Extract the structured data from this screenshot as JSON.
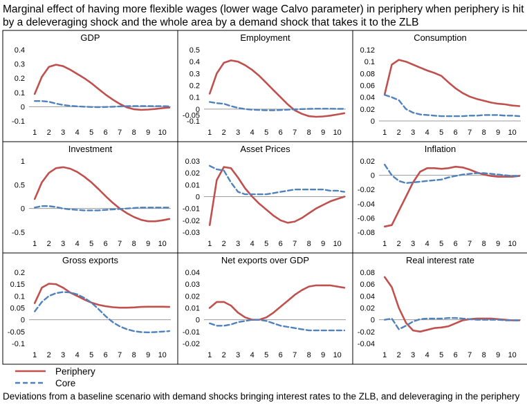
{
  "title": "Marginal effect of having more flexible wages (lower wage Calvo parameter) in periphery when periphery is hit by a deleveraging shock and the whole area by a demand shock that takes it to the ZLB",
  "footnote": "Deviations from a baseline scenario with demand shocks bringing interest rates to the ZLB, and deleveraging in the periphery",
  "colors": {
    "periphery": "#c0504d",
    "core": "#4f81bd",
    "panel_border": "#000000",
    "zero_line": "#9a9a9a"
  },
  "legend": [
    {
      "name": "Periphery",
      "style": "solid",
      "color": "#c0504d"
    },
    {
      "name": "Core",
      "style": "dashed",
      "color": "#4f81bd"
    }
  ],
  "chart_data": [
    {
      "type": "line",
      "title": "GDP",
      "ylim": [
        -0.1,
        0.4
      ],
      "yticks": [
        "0.4",
        "0.3",
        "0.2",
        "0.1",
        "0",
        "-0.1"
      ],
      "xticks": [
        "1",
        "2",
        "3",
        "4",
        "5",
        "6",
        "7",
        "8",
        "9",
        "10"
      ],
      "x": [
        1,
        1.5,
        2,
        2.5,
        3,
        3.5,
        4,
        4.5,
        5,
        5.5,
        6,
        6.5,
        7,
        7.5,
        8,
        8.5,
        9,
        9.5,
        10,
        10.5
      ],
      "series": [
        {
          "name": "Periphery",
          "values": [
            0.09,
            0.21,
            0.28,
            0.295,
            0.285,
            0.26,
            0.23,
            0.2,
            0.165,
            0.125,
            0.085,
            0.05,
            0.02,
            -0.005,
            -0.018,
            -0.022,
            -0.02,
            -0.016,
            -0.01,
            -0.006
          ]
        },
        {
          "name": "Core",
          "values": [
            0.04,
            0.04,
            0.035,
            0.022,
            0.012,
            0.006,
            0.003,
            0.0,
            -0.002,
            -0.003,
            -0.002,
            0.0,
            0.002,
            0.004,
            0.005,
            0.005,
            0.005,
            0.004,
            0.004,
            0.003
          ]
        }
      ]
    },
    {
      "type": "line",
      "title": "Employment",
      "ylim": [
        -0.1,
        0.5
      ],
      "yticks": [
        "0.5",
        "0.4",
        "0.3",
        "0.2",
        "0.1",
        "0",
        "-0.05",
        "-0.1"
      ],
      "yticks_values": [
        0.5,
        0.4,
        0.3,
        0.2,
        0.1,
        0,
        -0.05,
        -0.1
      ],
      "xticks": [
        "1",
        "2",
        "3",
        "4",
        "5",
        "6",
        "7",
        "8",
        "9",
        "10"
      ],
      "x": [
        1,
        1.5,
        2,
        2.5,
        3,
        3.5,
        4,
        4.5,
        5,
        5.5,
        6,
        6.5,
        7,
        7.5,
        8,
        8.5,
        9,
        9.5,
        10,
        10.5
      ],
      "series": [
        {
          "name": "Periphery",
          "values": [
            0.13,
            0.3,
            0.39,
            0.41,
            0.4,
            0.37,
            0.33,
            0.28,
            0.22,
            0.16,
            0.1,
            0.04,
            -0.01,
            -0.04,
            -0.06,
            -0.065,
            -0.062,
            -0.055,
            -0.045,
            -0.035
          ]
        },
        {
          "name": "Core",
          "values": [
            0.06,
            0.05,
            0.045,
            0.025,
            0.01,
            0.0,
            -0.005,
            -0.008,
            -0.01,
            -0.01,
            -0.008,
            -0.005,
            -0.002,
            0.0,
            0.002,
            0.003,
            0.003,
            0.003,
            0.002,
            0.002
          ]
        }
      ]
    },
    {
      "type": "line",
      "title": "Consumption",
      "ylim": [
        0,
        0.12
      ],
      "yticks": [
        "0.12",
        "0.1",
        "0.08",
        "0.06",
        "0.04",
        "0.02",
        "0"
      ],
      "xticks": [
        "1",
        "2",
        "3",
        "4",
        "5",
        "6",
        "7",
        "8",
        "9",
        "10"
      ],
      "x": [
        1,
        1.5,
        2,
        2.5,
        3,
        3.5,
        4,
        4.5,
        5,
        5.5,
        6,
        6.5,
        7,
        7.5,
        8,
        8.5,
        9,
        9.5,
        10,
        10.5
      ],
      "series": [
        {
          "name": "Periphery",
          "values": [
            0.045,
            0.095,
            0.103,
            0.1,
            0.095,
            0.09,
            0.085,
            0.081,
            0.076,
            0.065,
            0.055,
            0.047,
            0.041,
            0.037,
            0.034,
            0.031,
            0.029,
            0.028,
            0.026,
            0.025
          ]
        },
        {
          "name": "Core",
          "values": [
            0.044,
            0.04,
            0.035,
            0.02,
            0.014,
            0.011,
            0.01,
            0.009,
            0.008,
            0.008,
            0.008,
            0.008,
            0.009,
            0.009,
            0.01,
            0.01,
            0.01,
            0.009,
            0.009,
            0.008
          ]
        }
      ]
    },
    {
      "type": "line",
      "title": "Investment",
      "ylim": [
        -0.5,
        1
      ],
      "yticks": [
        "1",
        "0.5",
        "0",
        "-0.5"
      ],
      "xticks": [
        "1",
        "2",
        "3",
        "4",
        "5",
        "6",
        "7",
        "8",
        "9",
        "10"
      ],
      "x": [
        1,
        1.5,
        2,
        2.5,
        3,
        3.5,
        4,
        4.5,
        5,
        5.5,
        6,
        6.5,
        7,
        7.5,
        8,
        8.5,
        9,
        9.5,
        10,
        10.5
      ],
      "series": [
        {
          "name": "Periphery",
          "values": [
            0.2,
            0.55,
            0.75,
            0.85,
            0.87,
            0.84,
            0.77,
            0.67,
            0.55,
            0.41,
            0.26,
            0.12,
            0.0,
            -0.1,
            -0.18,
            -0.24,
            -0.27,
            -0.27,
            -0.25,
            -0.22
          ]
        },
        {
          "name": "Core",
          "values": [
            0.02,
            0.05,
            0.05,
            0.03,
            0.0,
            -0.02,
            -0.03,
            -0.04,
            -0.04,
            -0.04,
            -0.03,
            -0.02,
            -0.01,
            0.0,
            0.01,
            0.02,
            0.02,
            0.02,
            0.02,
            0.02
          ]
        }
      ]
    },
    {
      "type": "line",
      "title": "Asset Prices",
      "ylim": [
        -0.03,
        0.03
      ],
      "yticks": [
        "0.03",
        "0.02",
        "0.01",
        "0",
        "-0.01",
        "-0.02",
        "-0.03"
      ],
      "xticks": [
        "1",
        "2",
        "3",
        "4",
        "5",
        "6",
        "7",
        "8",
        "9",
        "10"
      ],
      "x": [
        1,
        1.5,
        2,
        2.5,
        3,
        3.5,
        4,
        4.5,
        5,
        5.5,
        6,
        6.5,
        7,
        7.5,
        8,
        8.5,
        9,
        9.5,
        10,
        10.5
      ],
      "series": [
        {
          "name": "Periphery",
          "values": [
            -0.024,
            0.014,
            0.025,
            0.024,
            0.016,
            0.007,
            0.0,
            -0.006,
            -0.011,
            -0.016,
            -0.02,
            -0.022,
            -0.021,
            -0.018,
            -0.014,
            -0.01,
            -0.007,
            -0.004,
            -0.002,
            0.0
          ]
        },
        {
          "name": "Core",
          "values": [
            0.026,
            0.023,
            0.022,
            0.012,
            0.004,
            0.002,
            0.002,
            0.002,
            0.002,
            0.003,
            0.004,
            0.005,
            0.006,
            0.006,
            0.006,
            0.006,
            0.006,
            0.005,
            0.005,
            0.004
          ]
        }
      ]
    },
    {
      "type": "line",
      "title": "Inflation",
      "ylim": [
        -0.08,
        0.02
      ],
      "yticks": [
        "0.02",
        "0",
        "-0.02",
        "-0.04",
        "-0.06",
        "-0.08"
      ],
      "xticks": [
        "1",
        "2",
        "3",
        "4",
        "5",
        "6",
        "7",
        "8",
        "9",
        "10"
      ],
      "x": [
        1,
        1.5,
        2,
        2.5,
        3,
        3.5,
        4,
        4.5,
        5,
        5.5,
        6,
        6.5,
        7,
        7.5,
        8,
        8.5,
        9,
        9.5,
        10,
        10.5
      ],
      "series": [
        {
          "name": "Periphery",
          "values": [
            -0.072,
            -0.07,
            -0.05,
            -0.03,
            -0.01,
            0.005,
            0.01,
            0.01,
            0.009,
            0.01,
            0.012,
            0.011,
            0.008,
            0.004,
            0.001,
            -0.001,
            -0.002,
            -0.002,
            -0.002,
            -0.001
          ]
        },
        {
          "name": "Core",
          "values": [
            0.015,
            0.0,
            -0.008,
            -0.011,
            -0.01,
            -0.009,
            -0.008,
            -0.007,
            -0.006,
            -0.003,
            -0.001,
            0.001,
            0.002,
            0.003,
            0.003,
            0.002,
            0.001,
            0.0,
            -0.001,
            -0.001
          ]
        }
      ]
    },
    {
      "type": "line",
      "title": "Gross exports",
      "ylim": [
        -0.1,
        0.2
      ],
      "yticks": [
        "0.2",
        "0.15",
        "0.1",
        "0.05",
        "0",
        "-0.05",
        "-0.1"
      ],
      "xticks": [
        "1",
        "2",
        "3",
        "4",
        "5",
        "6",
        "7",
        "8",
        "9",
        "10"
      ],
      "x": [
        1,
        1.5,
        2,
        2.5,
        3,
        3.5,
        4,
        4.5,
        5,
        5.5,
        6,
        6.5,
        7,
        7.5,
        8,
        8.5,
        9,
        9.5,
        10,
        10.5
      ],
      "series": [
        {
          "name": "Periphery",
          "values": [
            0.07,
            0.135,
            0.152,
            0.15,
            0.135,
            0.115,
            0.1,
            0.085,
            0.072,
            0.063,
            0.057,
            0.053,
            0.051,
            0.051,
            0.052,
            0.054,
            0.055,
            0.055,
            0.055,
            0.054
          ]
        },
        {
          "name": "Core",
          "values": [
            0.035,
            0.075,
            0.1,
            0.112,
            0.117,
            0.115,
            0.107,
            0.092,
            0.072,
            0.045,
            0.015,
            -0.01,
            -0.028,
            -0.04,
            -0.048,
            -0.052,
            -0.053,
            -0.052,
            -0.05,
            -0.048
          ]
        }
      ]
    },
    {
      "type": "line",
      "title": "Net exports over GDP",
      "ylim": [
        -0.02,
        0.04
      ],
      "yticks": [
        "0.04",
        "0.03",
        "0.02",
        "0.01",
        "0",
        "-0.01",
        "-0.02"
      ],
      "xticks": [
        "1",
        "2",
        "3",
        "4",
        "5",
        "6",
        "7",
        "8",
        "9",
        "10"
      ],
      "x": [
        1,
        1.5,
        2,
        2.5,
        3,
        3.5,
        4,
        4.5,
        5,
        5.5,
        6,
        6.5,
        7,
        7.5,
        8,
        8.5,
        9,
        9.5,
        10,
        10.5
      ],
      "series": [
        {
          "name": "Periphery",
          "values": [
            0.01,
            0.015,
            0.015,
            0.012,
            0.006,
            0.002,
            0.0,
            0.0,
            0.002,
            0.006,
            0.011,
            0.016,
            0.021,
            0.025,
            0.028,
            0.029,
            0.029,
            0.029,
            0.028,
            0.027
          ]
        },
        {
          "name": "Core",
          "values": [
            -0.003,
            -0.005,
            -0.005,
            -0.004,
            -0.002,
            -0.001,
            0.0,
            0.0,
            -0.001,
            -0.003,
            -0.005,
            -0.006,
            -0.007,
            -0.008,
            -0.009,
            -0.009,
            -0.009,
            -0.009,
            -0.009,
            -0.009
          ]
        }
      ]
    },
    {
      "type": "line",
      "title": "Real interest rate",
      "ylim": [
        -0.04,
        0.08
      ],
      "yticks": [
        "0.08",
        "0.06",
        "0.04",
        "0.02",
        "0",
        "-0.02",
        "-0.04"
      ],
      "xticks": [
        "1",
        "2",
        "3",
        "4",
        "5",
        "6",
        "7",
        "8",
        "9",
        "10"
      ],
      "x": [
        1,
        1.5,
        2,
        2.5,
        3,
        3.5,
        4,
        4.5,
        5,
        5.5,
        6,
        6.5,
        7,
        7.5,
        8,
        8.5,
        9,
        9.5,
        10,
        10.5
      ],
      "series": [
        {
          "name": "Periphery",
          "values": [
            0.072,
            0.055,
            0.02,
            -0.005,
            -0.018,
            -0.02,
            -0.017,
            -0.014,
            -0.013,
            -0.011,
            -0.006,
            -0.001,
            0.001,
            0.002,
            0.002,
            0.002,
            0.001,
            0.0,
            -0.001,
            -0.001
          ]
        },
        {
          "name": "Core",
          "values": [
            0.0,
            0.002,
            -0.016,
            -0.01,
            -0.003,
            0.001,
            0.002,
            0.002,
            0.002,
            0.003,
            0.003,
            0.002,
            0.001,
            0.0,
            0.0,
            0.0,
            0.0,
            -0.001,
            -0.001,
            -0.001
          ]
        }
      ]
    }
  ]
}
